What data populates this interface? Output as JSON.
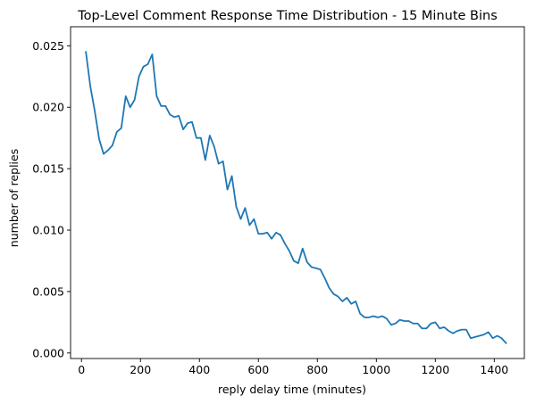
{
  "chart_data": {
    "type": "line",
    "title": "Top-Level Comment Response Time Distribution - 15 Minute Bins",
    "xlabel": "reply delay time (minutes)",
    "ylabel": "number of replies",
    "xlim": [
      -37,
      1502
    ],
    "ylim": [
      -0.00045,
      0.02655
    ],
    "x_ticks": [
      0,
      200,
      400,
      600,
      800,
      1000,
      1200,
      1400
    ],
    "x_tick_labels": [
      "0",
      "200",
      "400",
      "600",
      "800",
      "1000",
      "1200",
      "1400"
    ],
    "y_ticks": [
      0.0,
      0.005,
      0.01,
      0.015,
      0.02,
      0.025
    ],
    "y_tick_labels": [
      "0.000",
      "0.005",
      "0.010",
      "0.015",
      "0.020",
      "0.025"
    ],
    "grid": false,
    "line_color": "#1f77b4",
    "series": [
      {
        "x": [
          15,
          30,
          45,
          60,
          75,
          90,
          105,
          120,
          135,
          150,
          165,
          180,
          195,
          210,
          225,
          240,
          255,
          270,
          285,
          300,
          315,
          330,
          345,
          360,
          375,
          390,
          405,
          420,
          435,
          450,
          465,
          480,
          495,
          510,
          525,
          540,
          555,
          570,
          585,
          600,
          615,
          630,
          645,
          660,
          675,
          690,
          705,
          720,
          735,
          750,
          765,
          780,
          795,
          810,
          825,
          840,
          855,
          870,
          885,
          900,
          915,
          930,
          945,
          960,
          975,
          990,
          1005,
          1020,
          1035,
          1050,
          1065,
          1080,
          1095,
          1110,
          1125,
          1140,
          1155,
          1170,
          1185,
          1200,
          1215,
          1230,
          1245,
          1260,
          1275,
          1290,
          1305,
          1320,
          1335,
          1350,
          1365,
          1380,
          1395,
          1410,
          1425,
          1440
        ],
        "values": [
          0.0245,
          0.0217,
          0.0197,
          0.0174,
          0.0162,
          0.0165,
          0.0169,
          0.018,
          0.0183,
          0.0209,
          0.02,
          0.0206,
          0.0225,
          0.0233,
          0.0235,
          0.0243,
          0.0209,
          0.0201,
          0.0201,
          0.0194,
          0.0192,
          0.0193,
          0.0182,
          0.0187,
          0.0188,
          0.0175,
          0.0175,
          0.0157,
          0.0177,
          0.0168,
          0.0154,
          0.0156,
          0.0133,
          0.0144,
          0.0119,
          0.0109,
          0.0118,
          0.0104,
          0.0109,
          0.0097,
          0.0097,
          0.0098,
          0.0093,
          0.0098,
          0.0096,
          0.0089,
          0.0083,
          0.0075,
          0.0073,
          0.0085,
          0.0074,
          0.007,
          0.0069,
          0.0068,
          0.0061,
          0.0053,
          0.0048,
          0.0046,
          0.0042,
          0.0045,
          0.004,
          0.0042,
          0.0032,
          0.0029,
          0.0029,
          0.003,
          0.0029,
          0.003,
          0.0028,
          0.0023,
          0.0024,
          0.0027,
          0.0026,
          0.0026,
          0.0024,
          0.0024,
          0.002,
          0.002,
          0.0024,
          0.0025,
          0.002,
          0.0021,
          0.0018,
          0.0016,
          0.0018,
          0.0019,
          0.0019,
          0.0012,
          0.0013,
          0.0014,
          0.0015,
          0.0017,
          0.0012,
          0.0014,
          0.0012,
          0.0008
        ]
      }
    ]
  }
}
